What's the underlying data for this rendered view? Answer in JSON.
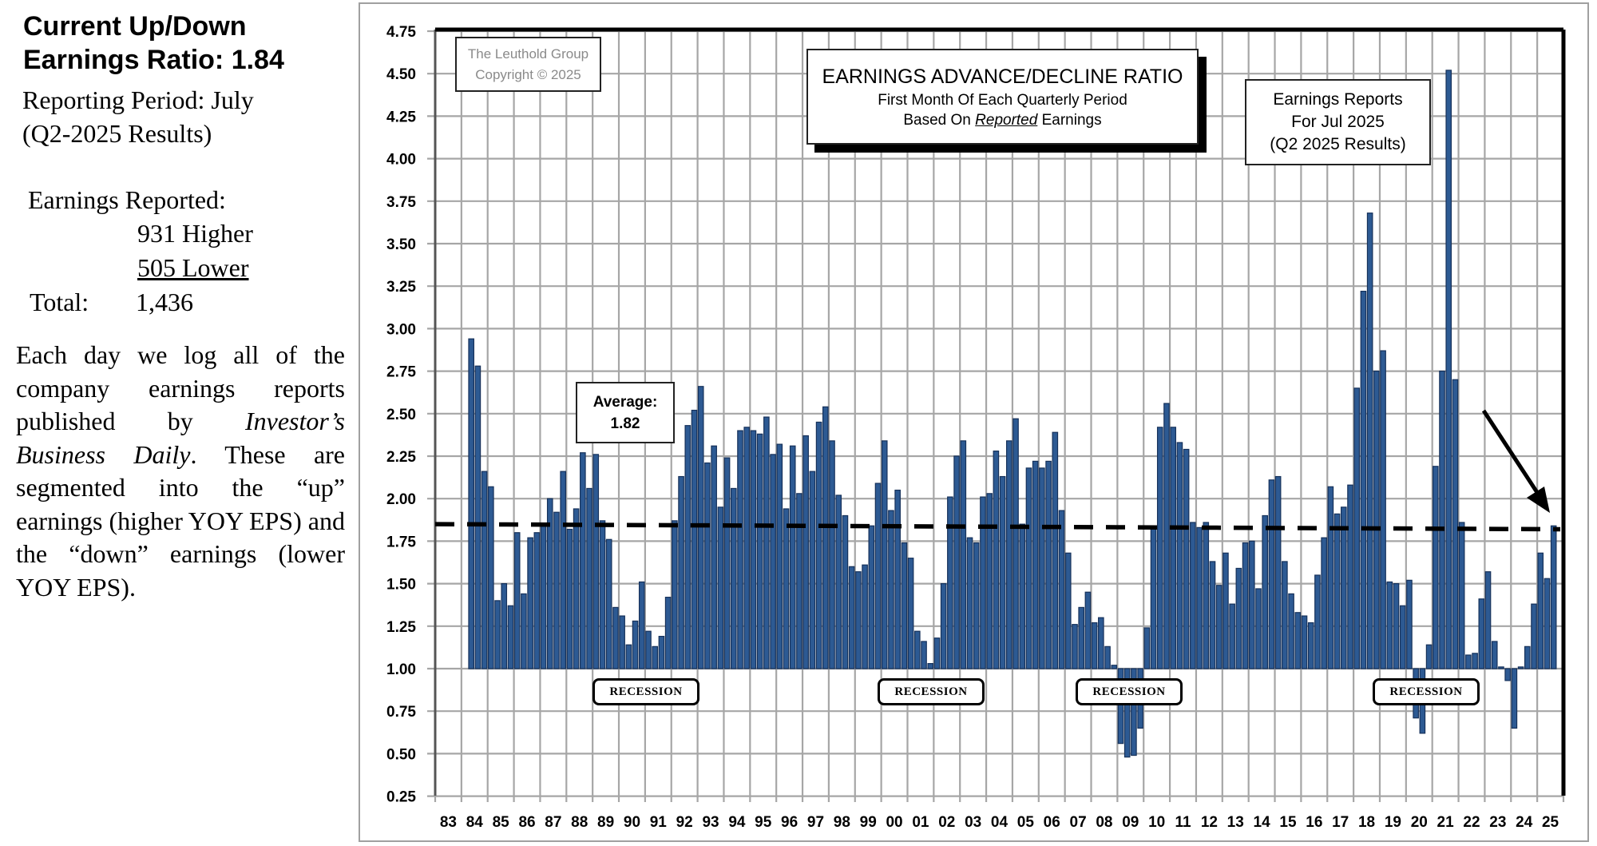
{
  "sidebar": {
    "heading_line1": "Current Up/Down",
    "heading_line2": "Earnings Ratio: 1.84",
    "period_line1": "Reporting Period: July",
    "period_line2": "(Q2-2025 Results)",
    "reported_label": "Earnings Reported:",
    "higher": "931 Higher",
    "lower": "505 Lower",
    "total_label": "Total:",
    "total_value": "1,436",
    "paragraph_part1": "Each day we log all of the company earnings reports published by ",
    "paragraph_italic": "Investor’s Business Daily",
    "paragraph_part2": ". These are segmented into the “up” earnings (higher YOY EPS) and the “down” earnings (lower YOY EPS)."
  },
  "chart_data": {
    "type": "bar",
    "title": "EARNINGS ADVANCE/DECLINE RATIO",
    "subtitle_line1": "First Month Of Each Quarterly Period",
    "subtitle_prefix": "Based On",
    "subtitle_emphasis": "Reported",
    "subtitle_suffix": "Earnings",
    "copyright_line1": "The Leuthold Group",
    "copyright_line2": "Copyright © 2025",
    "annotation_line1": "Earnings Reports",
    "annotation_line2": "For Jul 2025",
    "annotation_line3": "(Q2 2025 Results)",
    "average_label": "Average:",
    "average_value": "1.82",
    "average_line": [
      1.85,
      1.82
    ],
    "recession_label": "RECESSION",
    "recession_count": 4,
    "baseline": 1.0,
    "ylim": [
      0.25,
      4.75
    ],
    "y_ticks": [
      "4.75",
      "4.50",
      "4.25",
      "4.00",
      "3.75",
      "3.50",
      "3.25",
      "3.00",
      "2.75",
      "2.50",
      "2.25",
      "2.00",
      "1.75",
      "1.50",
      "1.25",
      "1.00",
      "0.75",
      "0.50",
      "0.25"
    ],
    "x_ticks": [
      "83",
      "84",
      "85",
      "86",
      "87",
      "88",
      "89",
      "90",
      "91",
      "92",
      "93",
      "94",
      "95",
      "96",
      "97",
      "98",
      "99",
      "00",
      "01",
      "02",
      "03",
      "04",
      "05",
      "06",
      "07",
      "08",
      "09",
      "10",
      "11",
      "12",
      "13",
      "14",
      "15",
      "16",
      "17",
      "18",
      "19",
      "20",
      "21",
      "22",
      "23",
      "24",
      "25"
    ],
    "frequency": "quarterly",
    "start_year": 1984,
    "start_quarter": 2,
    "grid": true,
    "colors": {
      "bar": "#2d5a93",
      "bar_edge": "#16315a",
      "grid": "#a6a6a6"
    },
    "values": [
      2.94,
      2.78,
      2.16,
      2.07,
      1.4,
      1.5,
      1.37,
      1.8,
      1.44,
      1.77,
      1.8,
      1.85,
      2.0,
      1.92,
      2.16,
      1.82,
      1.94,
      2.27,
      2.06,
      2.26,
      1.87,
      1.76,
      1.36,
      1.31,
      1.14,
      1.28,
      1.51,
      1.22,
      1.13,
      1.19,
      1.42,
      1.87,
      2.13,
      2.43,
      2.52,
      2.66,
      2.21,
      2.31,
      1.95,
      2.24,
      2.06,
      2.4,
      2.42,
      2.4,
      2.38,
      2.48,
      2.26,
      2.32,
      1.94,
      2.31,
      2.03,
      2.37,
      2.16,
      2.45,
      2.54,
      2.34,
      2.02,
      1.9,
      1.6,
      1.57,
      1.61,
      1.84,
      2.09,
      2.34,
      1.93,
      2.05,
      1.74,
      1.65,
      1.22,
      1.16,
      1.03,
      1.18,
      1.5,
      2.01,
      2.25,
      2.34,
      1.77,
      1.74,
      2.01,
      2.03,
      2.28,
      2.13,
      2.34,
      2.47,
      1.85,
      2.18,
      2.22,
      2.18,
      2.22,
      2.39,
      1.93,
      1.68,
      1.26,
      1.36,
      1.45,
      1.27,
      1.3,
      1.13,
      1.02,
      0.56,
      0.48,
      0.49,
      0.65,
      1.24,
      1.84,
      2.42,
      2.56,
      2.42,
      2.33,
      2.29,
      1.86,
      1.83,
      1.86,
      1.63,
      1.49,
      1.68,
      1.38,
      1.59,
      1.74,
      1.75,
      1.47,
      1.9,
      2.11,
      2.13,
      1.63,
      1.44,
      1.33,
      1.31,
      1.27,
      1.55,
      1.77,
      2.07,
      1.91,
      1.95,
      2.08,
      2.65,
      3.22,
      3.68,
      2.75,
      2.87,
      1.51,
      1.5,
      1.37,
      1.52,
      0.71,
      0.62,
      1.14,
      2.19,
      2.75,
      4.52,
      2.7,
      1.86,
      1.08,
      1.09,
      1.41,
      1.57,
      1.16,
      1.01,
      0.93,
      0.65,
      1.01,
      1.13,
      1.38,
      1.68,
      1.53,
      1.84
    ]
  }
}
